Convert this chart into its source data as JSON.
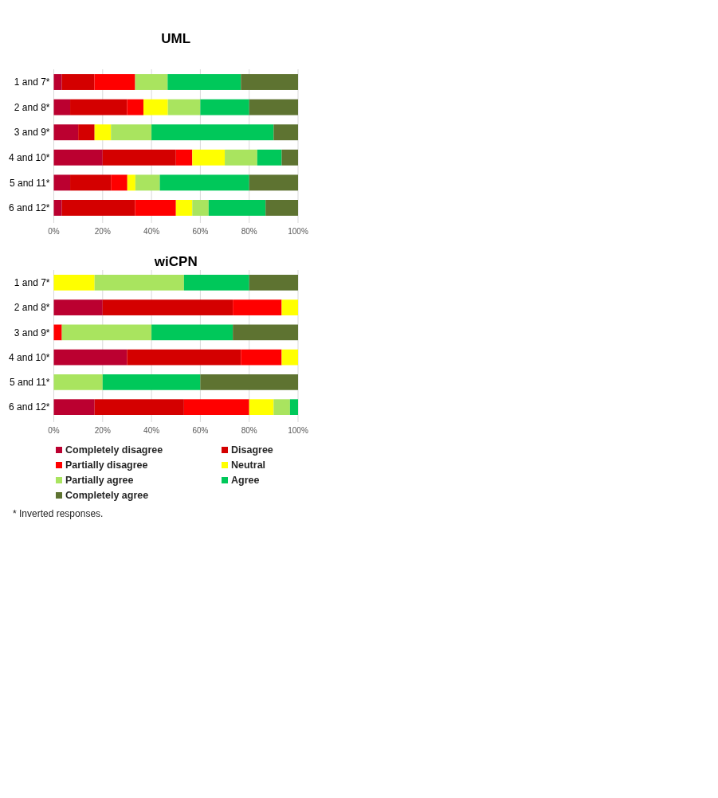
{
  "chart_data": [
    {
      "type": "bar",
      "title": "UML",
      "orientation": "horizontal",
      "stacked": true,
      "categories": [
        "1 and 7*",
        "2 and 8*",
        "3 and 9*",
        "4 and 10*",
        "5 and 11*",
        "6 and 12*"
      ],
      "series": [
        {
          "color": "#bb0030",
          "values": [
            3.3,
            6.7,
            10,
            20,
            6.7,
            3.3
          ]
        },
        {
          "color": "#d40000",
          "values": [
            13.3,
            23.3,
            6.7,
            30,
            16.7,
            30
          ]
        },
        {
          "color": "#ff0000",
          "values": [
            16.7,
            6.7,
            0,
            6.7,
            6.7,
            16.7
          ]
        },
        {
          "color": "#ffff00",
          "values": [
            0,
            10,
            6.7,
            13.3,
            3.3,
            6.7
          ]
        },
        {
          "color": "#a9e45f",
          "values": [
            13.3,
            13.3,
            16.6,
            13.3,
            10,
            6.7
          ]
        },
        {
          "color": "#00c85a",
          "values": [
            30,
            20,
            50,
            10,
            36.6,
            23.3
          ]
        },
        {
          "color": "#5e7331",
          "values": [
            23.4,
            20,
            10,
            6.7,
            20,
            13.3
          ]
        }
      ],
      "xlim": [
        0,
        100
      ],
      "xticks": [
        {
          "value": 0,
          "label": "0%"
        },
        {
          "value": 20,
          "label": "20%"
        },
        {
          "value": 40,
          "label": "40%"
        },
        {
          "value": 60,
          "label": "60%"
        },
        {
          "value": 80,
          "label": "80%"
        },
        {
          "value": 100,
          "label": "100%"
        }
      ],
      "grid": "x"
    },
    {
      "type": "bar",
      "title": "wiCPN",
      "orientation": "horizontal",
      "stacked": true,
      "categories": [
        "1 and 7*",
        "2 and 8*",
        "3 and 9*",
        "4 and 10*",
        "5 and 11*",
        "6 and 12*"
      ],
      "series": [
        {
          "name": "Completely disagree",
          "color": "#bb0030",
          "values": [
            0,
            20,
            0,
            30,
            0,
            16.7
          ]
        },
        {
          "name": "Disagree",
          "color": "#d40000",
          "values": [
            0,
            53.3,
            0,
            46.6,
            0,
            36.6
          ]
        },
        {
          "name": "Partially disagree",
          "color": "#ff0000",
          "values": [
            0,
            20,
            3.3,
            16.7,
            0,
            26.7
          ]
        },
        {
          "name": "Neutral",
          "color": "#ffff00",
          "values": [
            16.7,
            6.7,
            0,
            6.7,
            0,
            10
          ]
        },
        {
          "name": "Partially agree",
          "color": "#a9e45f",
          "values": [
            36.6,
            0,
            36.7,
            0,
            20,
            6.7
          ]
        },
        {
          "name": "Agree",
          "color": "#00c85a",
          "values": [
            26.7,
            0,
            33.3,
            0,
            40,
            3.3
          ]
        },
        {
          "name": "Completely agree",
          "color": "#5e7331",
          "values": [
            20,
            0,
            26.7,
            0,
            40,
            0
          ]
        }
      ],
      "xlim": [
        0,
        100
      ],
      "xticks": [
        {
          "value": 0,
          "label": "0%"
        },
        {
          "value": 20,
          "label": "20%"
        },
        {
          "value": 40,
          "label": "40%"
        },
        {
          "value": 60,
          "label": "60%"
        },
        {
          "value": 80,
          "label": "80%"
        },
        {
          "value": 100,
          "label": "100%"
        }
      ],
      "grid": "x",
      "legend": "bottom",
      "annotations": [
        "* Inverted responses."
      ]
    }
  ]
}
